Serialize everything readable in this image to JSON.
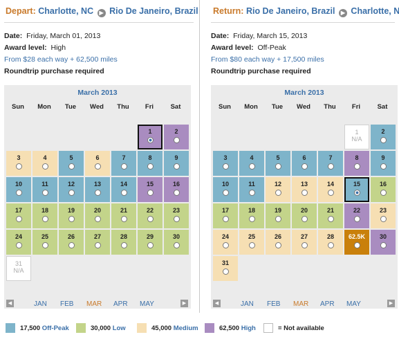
{
  "colors": {
    "blue": "#7eb4ca",
    "green": "#c3d48a",
    "tan": "#f6dfb3",
    "purple": "#a98cc0",
    "orange": "#c9800b",
    "link": "#3a6fa8",
    "accent": "#c97a2b"
  },
  "depart": {
    "label": "Depart:",
    "from": "Charlotte, NC",
    "to": "Rio De Janeiro, Brazil",
    "date_label": "Date:",
    "date": "Friday, March 01, 2013",
    "award_label": "Award level:",
    "award": "High",
    "price": "From $28 each way + 62,500 miles",
    "note": "Roundtrip purchase required",
    "calendar": {
      "title": "March 2013",
      "dows": [
        "Sun",
        "Mon",
        "Tue",
        "Wed",
        "Thu",
        "Fri",
        "Sat"
      ],
      "months": [
        "JAN",
        "FEB",
        "MAR",
        "APR",
        "MAY"
      ],
      "current_month": "MAR",
      "days": [
        {
          "d": "1",
          "c": "purple",
          "sel": true
        },
        {
          "d": "2",
          "c": "purple"
        },
        {
          "d": "3",
          "c": "tan"
        },
        {
          "d": "4",
          "c": "tan"
        },
        {
          "d": "5",
          "c": "blue"
        },
        {
          "d": "6",
          "c": "tan"
        },
        {
          "d": "7",
          "c": "blue"
        },
        {
          "d": "8",
          "c": "blue"
        },
        {
          "d": "9",
          "c": "blue"
        },
        {
          "d": "10",
          "c": "blue"
        },
        {
          "d": "11",
          "c": "blue"
        },
        {
          "d": "12",
          "c": "blue"
        },
        {
          "d": "13",
          "c": "blue"
        },
        {
          "d": "14",
          "c": "blue"
        },
        {
          "d": "15",
          "c": "purple"
        },
        {
          "d": "16",
          "c": "purple"
        },
        {
          "d": "17",
          "c": "green"
        },
        {
          "d": "18",
          "c": "green"
        },
        {
          "d": "19",
          "c": "green"
        },
        {
          "d": "20",
          "c": "green"
        },
        {
          "d": "21",
          "c": "green"
        },
        {
          "d": "22",
          "c": "green"
        },
        {
          "d": "23",
          "c": "green"
        },
        {
          "d": "24",
          "c": "green"
        },
        {
          "d": "25",
          "c": "green"
        },
        {
          "d": "26",
          "c": "green"
        },
        {
          "d": "27",
          "c": "green"
        },
        {
          "d": "28",
          "c": "green"
        },
        {
          "d": "29",
          "c": "green"
        },
        {
          "d": "30",
          "c": "green"
        },
        {
          "d": "31",
          "c": "na",
          "t": "N/A"
        }
      ]
    }
  },
  "return": {
    "label": "Return:",
    "from": "Rio De Janeiro, Brazil",
    "to": "Charlotte, NC",
    "date_label": "Date:",
    "date": "Friday, March 15, 2013",
    "award_label": "Award level:",
    "award": "Off-Peak",
    "price": "From $80 each way + 17,500 miles",
    "note": "Roundtrip purchase required",
    "calendar": {
      "title": "March 2013",
      "dows": [
        "Sun",
        "Mon",
        "Tue",
        "Wed",
        "Thu",
        "Fri",
        "Sat"
      ],
      "months": [
        "JAN",
        "FEB",
        "MAR",
        "APR",
        "MAY"
      ],
      "current_month": "MAR",
      "days": [
        {
          "d": "1",
          "c": "na",
          "t": "N/A"
        },
        {
          "d": "2",
          "c": "blue"
        },
        {
          "d": "3",
          "c": "blue"
        },
        {
          "d": "4",
          "c": "blue"
        },
        {
          "d": "5",
          "c": "blue"
        },
        {
          "d": "6",
          "c": "blue"
        },
        {
          "d": "7",
          "c": "blue"
        },
        {
          "d": "8",
          "c": "purple"
        },
        {
          "d": "9",
          "c": "blue"
        },
        {
          "d": "10",
          "c": "blue"
        },
        {
          "d": "11",
          "c": "blue"
        },
        {
          "d": "12",
          "c": "tan"
        },
        {
          "d": "13",
          "c": "tan"
        },
        {
          "d": "14",
          "c": "tan"
        },
        {
          "d": "15",
          "c": "blue",
          "sel": true
        },
        {
          "d": "16",
          "c": "green"
        },
        {
          "d": "17",
          "c": "green"
        },
        {
          "d": "18",
          "c": "green"
        },
        {
          "d": "19",
          "c": "green"
        },
        {
          "d": "20",
          "c": "green"
        },
        {
          "d": "21",
          "c": "green"
        },
        {
          "d": "22",
          "c": "purple"
        },
        {
          "d": "23",
          "c": "tan"
        },
        {
          "d": "24",
          "c": "tan"
        },
        {
          "d": "25",
          "c": "tan"
        },
        {
          "d": "26",
          "c": "tan"
        },
        {
          "d": "27",
          "c": "tan"
        },
        {
          "d": "28",
          "c": "tan"
        },
        {
          "d": "62.5K",
          "c": "orange"
        },
        {
          "d": "30",
          "c": "purple"
        },
        {
          "d": "31",
          "c": "tan"
        }
      ]
    }
  },
  "legend": [
    {
      "c": "blue",
      "miles": "17,500",
      "name": "Off-Peak"
    },
    {
      "c": "green",
      "miles": "30,000",
      "name": "Low"
    },
    {
      "c": "tan",
      "miles": "45,000",
      "name": "Medium"
    },
    {
      "c": "purple",
      "miles": "62,500",
      "name": "High"
    },
    {
      "c": "na",
      "miles": "",
      "name": "= Not available"
    }
  ]
}
